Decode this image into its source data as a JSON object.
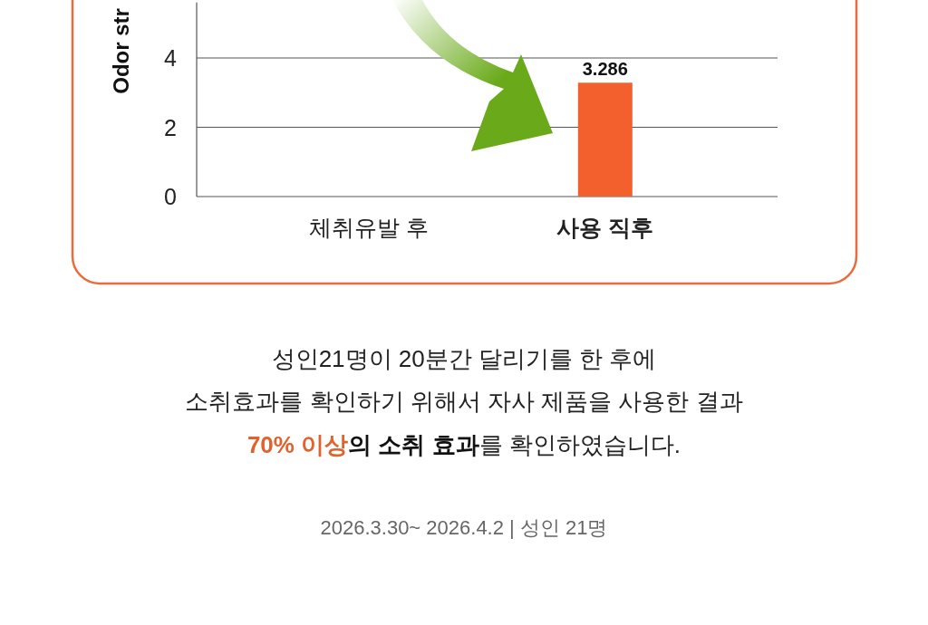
{
  "chart_data": {
    "type": "bar",
    "ylabel": "Odor str",
    "categories": [
      "체취유발 후",
      "사용 직후"
    ],
    "values": [
      null,
      3.286
    ],
    "colors": [
      null,
      "#f45f2e"
    ],
    "data_labels": true,
    "ylim": [
      0,
      5.6
    ],
    "yticks": [
      0,
      2,
      4
    ],
    "grid": "y",
    "annotations": [
      "성인21명이 20분간 달리기를 한 후에",
      "소취효과를 확인하기 위해서 자사 제품을 사용한 결과",
      "70% 이상",
      "의 소취 효과",
      "를 확인하였습니다.",
      "2026.3.30~ 2026.4.2 | 성인 21명"
    ]
  }
}
